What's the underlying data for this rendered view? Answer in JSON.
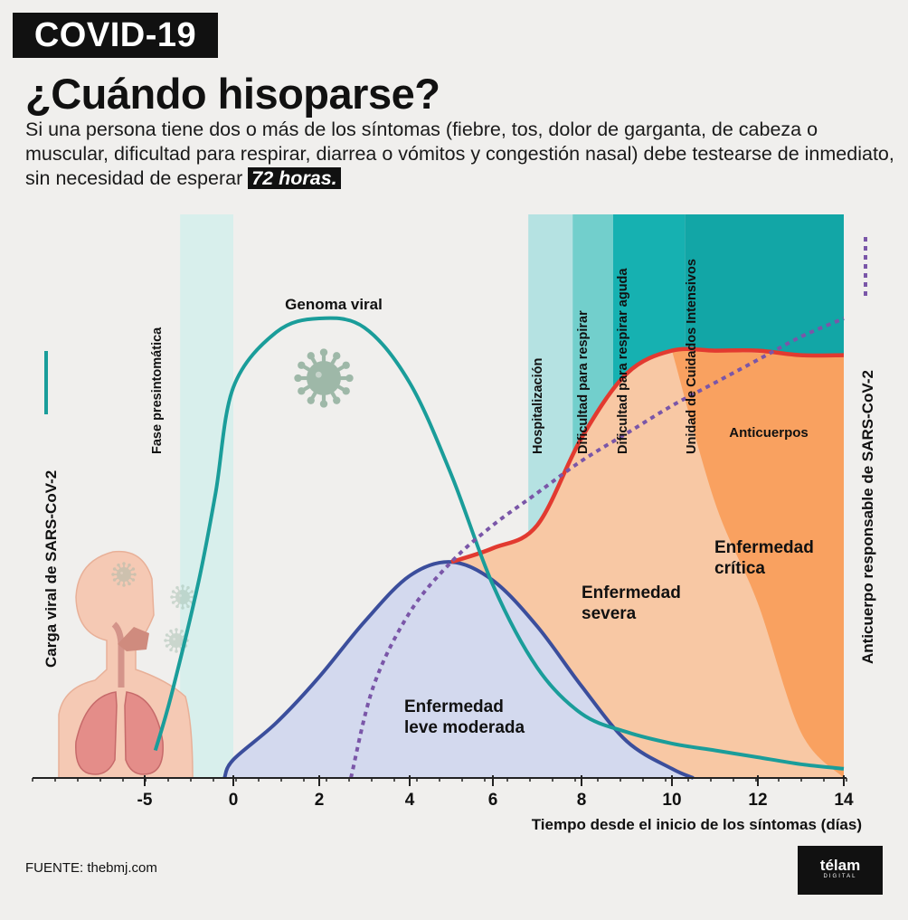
{
  "header": {
    "badge": "COVID-19",
    "title": "¿Cuándo hisoparse?",
    "subtitle": "Si una persona tiene dos o más de los síntomas (fiebre, tos, dolor de garganta, de cabeza o muscular, dificultad para respirar, diarrea o vómitos y congestión nasal) debe testearse de inmediato, sin necesidad de esperar",
    "highlight": "72 horas."
  },
  "footer": {
    "source": "FUENTE: thebmj.com",
    "logo_name": "télam",
    "logo_sub": "DIGITAL"
  },
  "colors": {
    "teal": "#1a9d9a",
    "navy": "#3b4e9c",
    "red": "#e23a30",
    "purple": "#7a56a8",
    "mild_fill": "#d3d9ee",
    "peach": "#f8c8a4",
    "orange": "#f9a160",
    "phase_light": "#d8efec",
    "virus": "#9eb8a8"
  },
  "chart_data": {
    "type": "area",
    "xlabel": "Tiempo desde el inicio de los síntomas (días)",
    "x_ticks": [
      -5,
      0,
      2,
      4,
      6,
      8,
      10,
      12,
      14
    ],
    "xlim": [
      -5,
      14
    ],
    "left_axis_label": "Carga viral de SARS-CoV-2",
    "right_axis_label": "Anticuerpo responsable de SARS-CoV-2",
    "phases": [
      {
        "label": "Fase presintomática",
        "x0": -3,
        "x1": 0
      },
      {
        "label": "Hospitalización",
        "x0": 6.8,
        "x1": 7.8
      },
      {
        "label": "Dificultad para respirar",
        "x0": 7.8,
        "x1": 8.7
      },
      {
        "label": "Dificultad para respirar aguda",
        "x0": 8.7,
        "x1": 10.3
      },
      {
        "label": "Unidad de Cuidados Intensivos",
        "x0": 10.3,
        "x1": 14
      },
      {
        "label": "Anticuerpos",
        "x0": 8.7,
        "x1": 14
      }
    ],
    "series": [
      {
        "name": "Genoma viral",
        "x": [
          -4.4,
          -3.5,
          -2,
          -1,
          0,
          1,
          2,
          3,
          4,
          5,
          6,
          7,
          8,
          9,
          10,
          11,
          12,
          13,
          14
        ],
        "y": [
          0.06,
          0.18,
          0.42,
          0.62,
          0.85,
          0.97,
          1.0,
          0.98,
          0.86,
          0.66,
          0.42,
          0.24,
          0.14,
          0.1,
          0.075,
          0.06,
          0.045,
          0.03,
          0.02
        ]
      },
      {
        "name": "Enfermedad leve moderada",
        "x": [
          -0.5,
          0,
          1,
          2,
          3,
          4,
          5,
          6,
          7,
          8,
          9,
          10,
          10.5
        ],
        "y": [
          0,
          0.04,
          0.12,
          0.22,
          0.34,
          0.44,
          0.47,
          0.43,
          0.33,
          0.2,
          0.08,
          0.02,
          0
        ]
      },
      {
        "name": "Enfermedad severa",
        "x": [
          5,
          6,
          7,
          8,
          9,
          10,
          11,
          12,
          13,
          14
        ],
        "y": [
          0.47,
          0.5,
          0.55,
          0.74,
          0.88,
          0.93,
          0.93,
          0.93,
          0.92,
          0.92
        ]
      },
      {
        "name": "Enfermedad crítica",
        "x": [
          10,
          11,
          12,
          13,
          14
        ],
        "y": [
          0.93,
          0.6,
          0.38,
          0.1,
          0
        ]
      },
      {
        "name": "Anticuerpos",
        "x": [
          2.7,
          3.2,
          4,
          5,
          6,
          7,
          8,
          9,
          10,
          11,
          12,
          13,
          14
        ],
        "y": [
          0,
          0.2,
          0.36,
          0.47,
          0.55,
          0.62,
          0.69,
          0.75,
          0.81,
          0.86,
          0.91,
          0.96,
          1.0
        ]
      }
    ],
    "area_labels": [
      "Enfermedad leve moderada",
      "Enfermedad severa",
      "Enfermedad crítica"
    ]
  }
}
